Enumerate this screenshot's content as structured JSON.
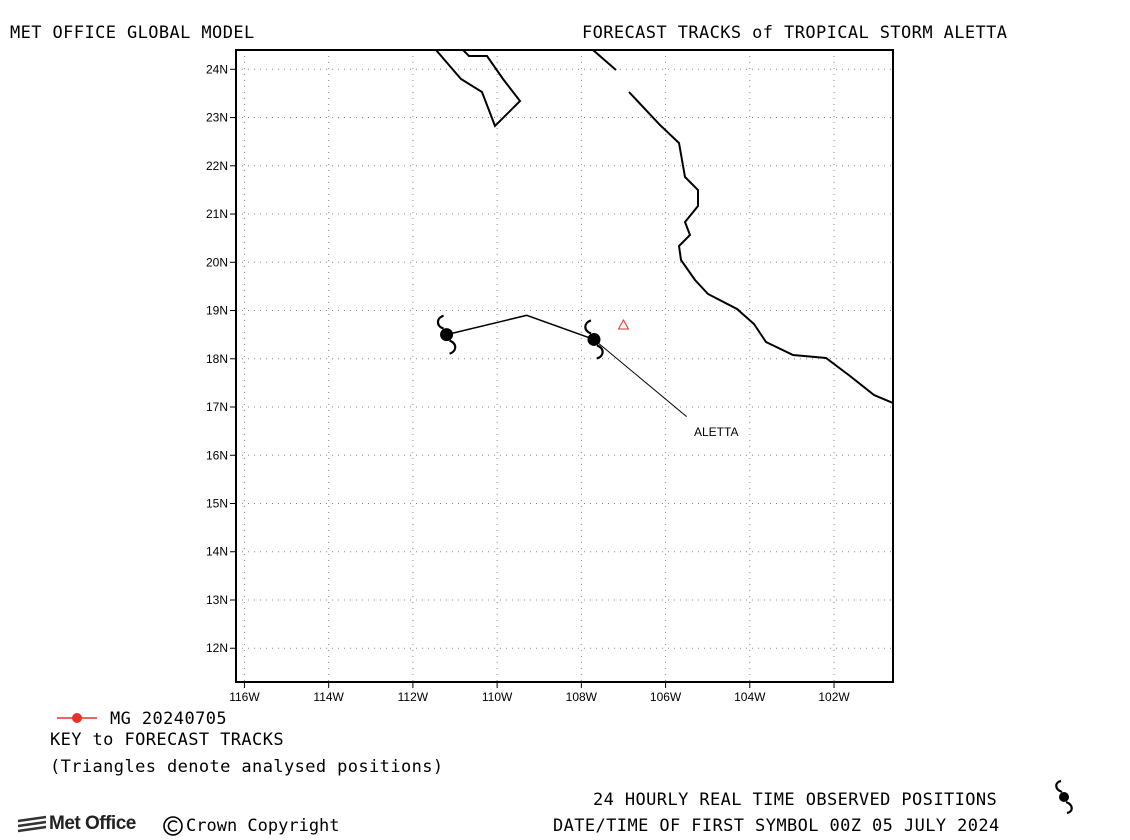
{
  "header": {
    "left_title": "MET OFFICE GLOBAL MODEL",
    "right_title": "FORECAST TRACKS of TROPICAL STORM ALETTA"
  },
  "map": {
    "lon_range": [
      -116.2,
      -100.6
    ],
    "lat_range": [
      11.3,
      24.4
    ],
    "lon_ticks": [
      "116W",
      "114W",
      "112W",
      "110W",
      "108W",
      "106W",
      "104W",
      "102W"
    ],
    "lat_ticks": [
      "24N",
      "23N",
      "22N",
      "21N",
      "20N",
      "19N",
      "18N",
      "17N",
      "16N",
      "15N",
      "14N",
      "13N",
      "12N"
    ],
    "grid": "dotted",
    "storm_label": "ALETTA",
    "forecast_track": [
      [
        -107.7,
        18.4
      ],
      [
        -109.3,
        18.9
      ],
      [
        -111.2,
        18.5
      ]
    ],
    "observed_track": [
      [
        -105.5,
        16.8
      ],
      [
        -107.7,
        18.4
      ]
    ],
    "observed_symbols": [
      [
        -107.7,
        18.4
      ],
      [
        -111.2,
        18.5
      ]
    ],
    "analysed_triangles": [
      [
        -107.0,
        18.7
      ]
    ],
    "symbol_icon": "tropical-storm-icon",
    "track_color": "#000000",
    "triangle_color": "#e0302a"
  },
  "legend": {
    "model_label": "MG 20240705",
    "model_color": "#e8312c",
    "key_title": "KEY to FORECAST TRACKS",
    "key_note": "(Triangles denote analysed positions)"
  },
  "footer": {
    "observed_note": "24 HOURLY REAL TIME OBSERVED POSITIONS",
    "first_symbol": "DATE/TIME OF FIRST SYMBOL 00Z 05 JULY 2024",
    "logo_text": "Met Office",
    "copyright": "Crown Copyright"
  }
}
